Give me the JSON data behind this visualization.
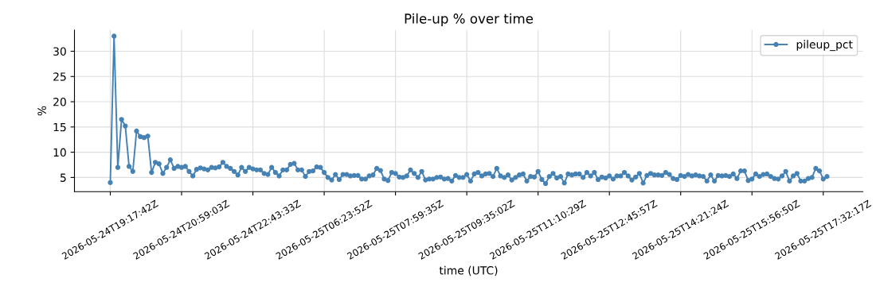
{
  "chart_data": {
    "type": "line",
    "title": "Pile-up % over time",
    "xlabel": "time (UTC)",
    "ylabel": "%",
    "categories": [
      "2026-05-24T19:17:42Z",
      null,
      null,
      null,
      null,
      null,
      null,
      null,
      null,
      null,
      null,
      null,
      null,
      null,
      null,
      null,
      null,
      null,
      null,
      "2026-05-24T20:59:03Z",
      null,
      null,
      null,
      null,
      null,
      null,
      null,
      null,
      null,
      null,
      null,
      null,
      null,
      null,
      null,
      null,
      null,
      null,
      "2026-05-24T22:43:33Z",
      null,
      null,
      null,
      null,
      null,
      null,
      null,
      null,
      null,
      null,
      null,
      null,
      null,
      null,
      null,
      null,
      null,
      null,
      "2026-05-25T06:23:52Z",
      null,
      null,
      null,
      null,
      null,
      null,
      null,
      null,
      null,
      null,
      null,
      null,
      null,
      null,
      null,
      null,
      null,
      null,
      "2026-05-25T07:59:35Z",
      null,
      null,
      null,
      null,
      null,
      null,
      null,
      null,
      null,
      null,
      null,
      null,
      null,
      null,
      null,
      null,
      null,
      null,
      "2026-05-25T09:35:02Z",
      null,
      null,
      null,
      null,
      null,
      null,
      null,
      null,
      null,
      null,
      null,
      null,
      null,
      null,
      null,
      null,
      null,
      null,
      "2026-05-25T11:10:29Z",
      null,
      null,
      null,
      null,
      null,
      null,
      null,
      null,
      null,
      null,
      null,
      null,
      null,
      null,
      null,
      null,
      null,
      null,
      "2026-05-25T12:45:57Z",
      null,
      null,
      null,
      null,
      null,
      null,
      null,
      null,
      null,
      null,
      null,
      null,
      null,
      null,
      null,
      null,
      null,
      null,
      "2026-05-25T14:21:24Z",
      null,
      null,
      null,
      null,
      null,
      null,
      null,
      null,
      null,
      null,
      null,
      null,
      null,
      null,
      null,
      null,
      null,
      null,
      "2026-05-25T15:56:50Z",
      null,
      null,
      null,
      null,
      null,
      null,
      null,
      null,
      null,
      null,
      null,
      null,
      null,
      null,
      null,
      null,
      null,
      null,
      "2026-05-25T17:32:17Z",
      null
    ],
    "series": [
      {
        "name": "pileup_pct",
        "color": "#4682b4",
        "values": [
          4,
          33,
          7,
          16.5,
          15.2,
          7.2,
          6.2,
          14.2,
          13.1,
          12.9,
          13.2,
          6,
          8,
          7.7,
          5.8,
          7,
          8.5,
          6.8,
          7.2,
          7,
          7.2,
          6.2,
          5.3,
          6.6,
          6.9,
          6.7,
          6.5,
          7,
          6.9,
          7.1,
          8,
          7.2,
          6.8,
          6.2,
          5.5,
          7,
          6.2,
          7,
          6.7,
          6.5,
          6.5,
          5.8,
          5.6,
          7,
          6,
          5.3,
          6.5,
          6.5,
          7.6,
          7.8,
          6.5,
          6.5,
          5.2,
          6.2,
          6.3,
          7.1,
          7,
          6,
          5,
          4.5,
          5.6,
          4.6,
          5.6,
          5.6,
          5.3,
          5.4,
          5.4,
          4.7,
          4.7,
          5.3,
          5.5,
          6.8,
          6.4,
          4.7,
          4.4,
          6,
          5.8,
          5.1,
          5,
          5.3,
          6.5,
          5.8,
          5,
          6.2,
          4.5,
          4.7,
          4.7,
          5,
          5.1,
          4.7,
          4.8,
          4.3,
          5.4,
          5,
          5,
          5.6,
          4.3,
          5.7,
          6,
          5.3,
          5.7,
          5.8,
          5.2,
          6.8,
          5.3,
          5,
          5.5,
          4.5,
          5,
          5.5,
          5.7,
          4.3,
          5.2,
          5.1,
          6.2,
          4.6,
          3.8,
          5.2,
          5.8,
          4.9,
          5.2,
          3.9,
          5.7,
          5.5,
          5.7,
          5.7,
          5,
          6,
          5.3,
          6,
          4.6,
          5.1,
          4.9,
          5.3,
          4.7,
          5.3,
          5.3,
          6,
          5.3,
          4.5,
          5.1,
          5.8,
          3.9,
          5.4,
          5.8,
          5.5,
          5.5,
          5.4,
          6,
          5.6,
          4.8,
          4.6,
          5.4,
          5.2,
          5.6,
          5.3,
          5.5,
          5.3,
          5.2,
          4.3,
          5.5,
          4.3,
          5.4,
          5.3,
          5.4,
          5.2,
          5.7,
          4.8,
          6.3,
          6.3,
          4.4,
          4.7,
          5.7,
          5.2,
          5.6,
          5.7,
          5.2,
          4.8,
          4.7,
          5.3,
          6.2,
          4.3,
          5.3,
          5.8,
          4.3,
          4.3,
          4.8,
          5,
          6.8,
          6.3,
          4.7,
          5.2
        ]
      }
    ],
    "ylim": [
      2.2,
      34.2
    ],
    "yticks": [
      5,
      10,
      15,
      20,
      25,
      30
    ],
    "grid": true,
    "legend": "top right",
    "marker": "circle",
    "line_style": "solid"
  }
}
